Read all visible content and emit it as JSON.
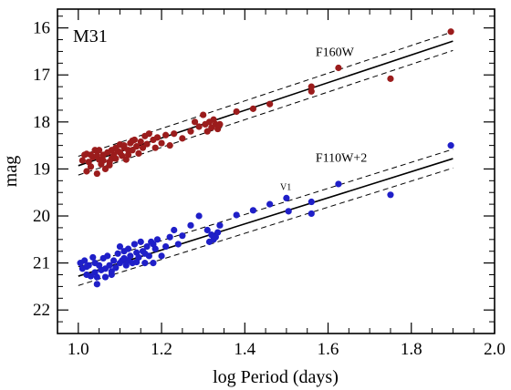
{
  "chart_data": {
    "type": "scatter",
    "title": "M31",
    "xlabel": "log Period (days)",
    "ylabel": "mag",
    "xlim": [
      0.95,
      2.0
    ],
    "ylim": [
      22.5,
      15.6
    ],
    "y_inverted": true,
    "grid": false,
    "x_ticks": [
      "1.0",
      "1.2",
      "1.4",
      "1.6",
      "1.8",
      "2.0"
    ],
    "y_ticks": [
      "16",
      "17",
      "18",
      "19",
      "20",
      "21",
      "22"
    ],
    "series": [
      {
        "name": "F160W",
        "color": "#9b1c1c",
        "fit": {
          "x": [
            1.0,
            1.9
          ],
          "y": [
            18.93,
            16.28
          ]
        },
        "band_offset": 0.2,
        "label_anchor": {
          "x": 1.57,
          "y": 16.6
        },
        "points": [
          [
            1.01,
            18.82
          ],
          [
            1.015,
            18.7
          ],
          [
            1.02,
            19.05
          ],
          [
            1.025,
            18.85
          ],
          [
            1.03,
            18.95
          ],
          [
            1.035,
            18.75
          ],
          [
            1.04,
            18.6
          ],
          [
            1.045,
            19.1
          ],
          [
            1.05,
            18.8
          ],
          [
            1.055,
            18.9
          ],
          [
            1.06,
            18.7
          ],
          [
            1.065,
            19.0
          ],
          [
            1.07,
            18.65
          ],
          [
            1.075,
            18.85
          ],
          [
            1.08,
            18.78
          ],
          [
            1.085,
            18.7
          ],
          [
            1.09,
            18.55
          ],
          [
            1.095,
            18.62
          ],
          [
            1.1,
            18.48
          ],
          [
            1.105,
            18.72
          ],
          [
            1.11,
            18.55
          ],
          [
            1.115,
            18.8
          ],
          [
            1.12,
            18.7
          ],
          [
            1.125,
            18.45
          ],
          [
            1.13,
            18.6
          ],
          [
            1.135,
            18.38
          ],
          [
            1.14,
            18.52
          ],
          [
            1.145,
            18.67
          ],
          [
            1.15,
            18.42
          ],
          [
            1.155,
            18.55
          ],
          [
            1.16,
            18.3
          ],
          [
            1.165,
            18.47
          ],
          [
            1.17,
            18.25
          ],
          [
            1.18,
            18.38
          ],
          [
            1.185,
            18.55
          ],
          [
            1.19,
            18.33
          ],
          [
            1.2,
            18.45
          ],
          [
            1.21,
            18.28
          ],
          [
            1.22,
            18.5
          ],
          [
            1.23,
            18.25
          ],
          [
            1.25,
            18.35
          ],
          [
            1.27,
            18.2
          ],
          [
            1.28,
            18.0
          ],
          [
            1.29,
            18.1
          ],
          [
            1.3,
            17.85
          ],
          [
            1.305,
            18.05
          ],
          [
            1.31,
            18.2
          ],
          [
            1.315,
            18.0
          ],
          [
            1.32,
            18.12
          ],
          [
            1.325,
            17.95
          ],
          [
            1.33,
            18.05
          ],
          [
            1.335,
            18.15
          ],
          [
            1.34,
            18.05
          ],
          [
            1.38,
            17.78
          ],
          [
            1.42,
            17.72
          ],
          [
            1.46,
            17.62
          ],
          [
            1.56,
            17.25
          ],
          [
            1.56,
            17.35
          ],
          [
            1.625,
            16.85
          ],
          [
            1.75,
            17.08
          ],
          [
            1.895,
            16.08
          ],
          [
            1.03,
            18.7
          ],
          [
            1.045,
            18.72
          ],
          [
            1.06,
            18.82
          ],
          [
            1.08,
            18.6
          ],
          [
            1.1,
            18.65
          ],
          [
            1.11,
            18.5
          ],
          [
            1.13,
            18.4
          ],
          [
            1.02,
            18.68
          ],
          [
            1.05,
            18.6
          ],
          [
            1.075,
            18.92
          ],
          [
            1.09,
            18.78
          ],
          [
            1.12,
            18.6
          ]
        ]
      },
      {
        "name": "F110W+2",
        "color": "#1f1fc8",
        "fit": {
          "x": [
            1.0,
            1.9
          ],
          "y": [
            21.28,
            18.78
          ]
        },
        "band_offset": 0.2,
        "label_anchor": {
          "x": 1.57,
          "y": 18.85
        },
        "points": [
          [
            1.005,
            21.0
          ],
          [
            1.01,
            21.12
          ],
          [
            1.015,
            20.95
          ],
          [
            1.02,
            21.25
          ],
          [
            1.025,
            21.05
          ],
          [
            1.03,
            21.28
          ],
          [
            1.035,
            20.88
          ],
          [
            1.04,
            21.2
          ],
          [
            1.045,
            21.45
          ],
          [
            1.05,
            21.05
          ],
          [
            1.055,
            21.15
          ],
          [
            1.06,
            20.9
          ],
          [
            1.065,
            21.3
          ],
          [
            1.07,
            20.85
          ],
          [
            1.075,
            21.05
          ],
          [
            1.08,
            21.18
          ],
          [
            1.085,
            20.95
          ],
          [
            1.09,
            21.1
          ],
          [
            1.095,
            20.8
          ],
          [
            1.1,
            20.65
          ],
          [
            1.105,
            20.95
          ],
          [
            1.11,
            20.75
          ],
          [
            1.115,
            21.05
          ],
          [
            1.12,
            20.7
          ],
          [
            1.125,
            20.85
          ],
          [
            1.13,
            21.0
          ],
          [
            1.135,
            20.6
          ],
          [
            1.14,
            20.78
          ],
          [
            1.145,
            20.88
          ],
          [
            1.15,
            20.55
          ],
          [
            1.155,
            20.75
          ],
          [
            1.16,
            21.0
          ],
          [
            1.165,
            20.65
          ],
          [
            1.17,
            20.85
          ],
          [
            1.175,
            20.55
          ],
          [
            1.18,
            21.0
          ],
          [
            1.185,
            20.7
          ],
          [
            1.19,
            20.5
          ],
          [
            1.2,
            20.85
          ],
          [
            1.21,
            20.65
          ],
          [
            1.22,
            20.45
          ],
          [
            1.23,
            20.3
          ],
          [
            1.24,
            20.6
          ],
          [
            1.25,
            20.42
          ],
          [
            1.27,
            20.2
          ],
          [
            1.29,
            20.0
          ],
          [
            1.31,
            20.3
          ],
          [
            1.315,
            20.55
          ],
          [
            1.32,
            20.4
          ],
          [
            1.325,
            20.5
          ],
          [
            1.33,
            20.45
          ],
          [
            1.335,
            20.35
          ],
          [
            1.34,
            20.2
          ],
          [
            1.38,
            19.98
          ],
          [
            1.42,
            19.88
          ],
          [
            1.46,
            19.75
          ],
          [
            1.5,
            19.62
          ],
          [
            1.505,
            19.9
          ],
          [
            1.56,
            19.95
          ],
          [
            1.56,
            19.7
          ],
          [
            1.625,
            19.32
          ],
          [
            1.75,
            19.55
          ],
          [
            1.895,
            18.5
          ],
          [
            1.02,
            21.08
          ],
          [
            1.045,
            21.3
          ],
          [
            1.065,
            21.12
          ],
          [
            1.08,
            21.25
          ],
          [
            1.1,
            21.0
          ],
          [
            1.12,
            20.95
          ],
          [
            1.14,
            20.98
          ],
          [
            1.16,
            20.8
          ],
          [
            1.18,
            20.6
          ],
          [
            1.04,
            21.0
          ],
          [
            1.11,
            20.9
          ]
        ],
        "annotations": [
          {
            "text": "V1",
            "x": 1.485,
            "y": 19.45
          }
        ]
      }
    ]
  }
}
